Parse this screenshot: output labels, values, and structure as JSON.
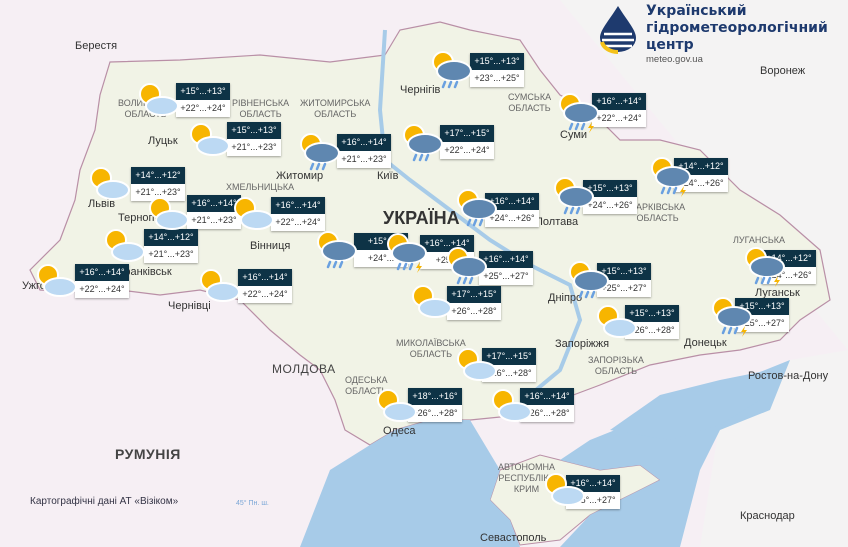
{
  "header": {
    "org_name_lines": [
      "Український",
      "гідрометеорологічний",
      "центр"
    ],
    "website": "meteo.gov.ua"
  },
  "map": {
    "country_label": "УКРАЇНА",
    "neighbors": [
      "МОЛДОВА",
      "РУМУНІЯ"
    ],
    "cities": [
      "Берестя",
      "Луцьк",
      "Житомир",
      "Київ",
      "Чернігів",
      "Суми",
      "Львів",
      "Тернопіль",
      "Вінниця",
      "Франківськ",
      "Ужгород",
      "Чернівці",
      "Полтава",
      "Дніпро",
      "Запоріжжя",
      "Донецьк",
      "Луганськ",
      "Одеса",
      "Севастополь",
      "Краснодар",
      "Ростов-на-Дону",
      "Воронеж"
    ],
    "regions": [
      "СУМСЬКА\nОБЛАСТЬ",
      "ХАРКІВСЬКА\nОБЛАСТЬ",
      "ЗАПОРІЗЬКА\nОБЛАСТЬ",
      "МИКОЛАЇВСЬКА\nОБЛАСТЬ",
      "ОДЕСЬКА\nОБЛАСТЬ",
      "АВТОНОМНА\nРЕСПУБЛІКА\nКРИМ",
      "ЛУГАНСЬКА",
      "ВОЛИНСЬКА\nОБЛАСТЬ",
      "РІВНЕНСЬКА\nОБЛАСТЬ",
      "ЖИТОМИРСЬКА\nОБЛАСТЬ",
      "ХМЕЛЬНИЦЬКА"
    ],
    "credit": "Картографічні дані АТ «Візіком»",
    "latitude_label": "45° Пн. ш.",
    "colors": {
      "land": "#f3f4ea",
      "sea": "#a7cbe8",
      "box_header": "#0e3346",
      "foreign": "#f6eff4"
    }
  },
  "forecasts": [
    {
      "night": "+15°...+13°",
      "day": "+22°...+24°",
      "icon": "sun-cloud"
    },
    {
      "night": "+15°...+13°",
      "day": "+21°...+23°",
      "icon": "sun-cloud"
    },
    {
      "night": "+16°...+14°",
      "day": "+21°...+23°",
      "icon": "rain"
    },
    {
      "night": "+17°...+15°",
      "day": "+22°...+24°",
      "icon": "rain"
    },
    {
      "night": "+15°...+13°",
      "day": "+23°...+25°",
      "icon": "rain"
    },
    {
      "night": "+16°...+14°",
      "day": "+22°...+24°",
      "icon": "thunderstorm"
    },
    {
      "night": "+14°...+12°",
      "day": "+24°...+26°",
      "icon": "thunderstorm"
    },
    {
      "night": "+15°...+13°",
      "day": "+24°...+26°",
      "icon": "rain"
    },
    {
      "night": "+16°...+14°",
      "day": "+24°...+26°",
      "icon": "rain"
    },
    {
      "night": "+14°...+12°",
      "day": "+21°...+23°",
      "icon": "sun-cloud"
    },
    {
      "night": "+16°...+14°",
      "day": "+21°...+23°",
      "icon": "sun-cloud"
    },
    {
      "night": "+16°...+14°",
      "day": "+22°...+24°",
      "icon": "sun-cloud"
    },
    {
      "night": "+14°...+12°",
      "day": "+21°...+23°",
      "icon": "sun-cloud"
    },
    {
      "night": "+16°...+14°",
      "day": "+22°...+24°",
      "icon": "sun-cloud"
    },
    {
      "night": "+16°...+14°",
      "day": "+22°...+24°",
      "icon": "sun-cloud"
    },
    {
      "night": "+15°...",
      "day": "+24°...",
      "icon": "rain"
    },
    {
      "night": "+16°...+14°",
      "day": "+25...",
      "icon": "thunderstorm"
    },
    {
      "night": "+16°...+14°",
      "day": "+25°...+27°",
      "icon": "rain"
    },
    {
      "night": "+17°...+15°",
      "day": "+26°...+28°",
      "icon": "sun-cloud"
    },
    {
      "night": "+15°...+13°",
      "day": "+25°...+27°",
      "icon": "rain"
    },
    {
      "night": "+14°...+12°",
      "day": "+24°...+26°",
      "icon": "thunderstorm"
    },
    {
      "night": "+15°...+13°",
      "day": "+25°...+27°",
      "icon": "thunderstorm"
    },
    {
      "night": "+15°...+13°",
      "day": "+26°...+28°",
      "icon": "sun-cloud"
    },
    {
      "night": "+17°...+15°",
      "day": "+26°...+28°",
      "icon": "sun-cloud"
    },
    {
      "night": "+18°...+16°",
      "day": "+26°...+28°",
      "icon": "sun-cloud"
    },
    {
      "night": "+16°...+14°",
      "day": "+26°...+28°",
      "icon": "sun-cloud"
    },
    {
      "night": "+16°...+14°",
      "day": "+25°...+27°",
      "icon": "sun-cloud"
    }
  ]
}
